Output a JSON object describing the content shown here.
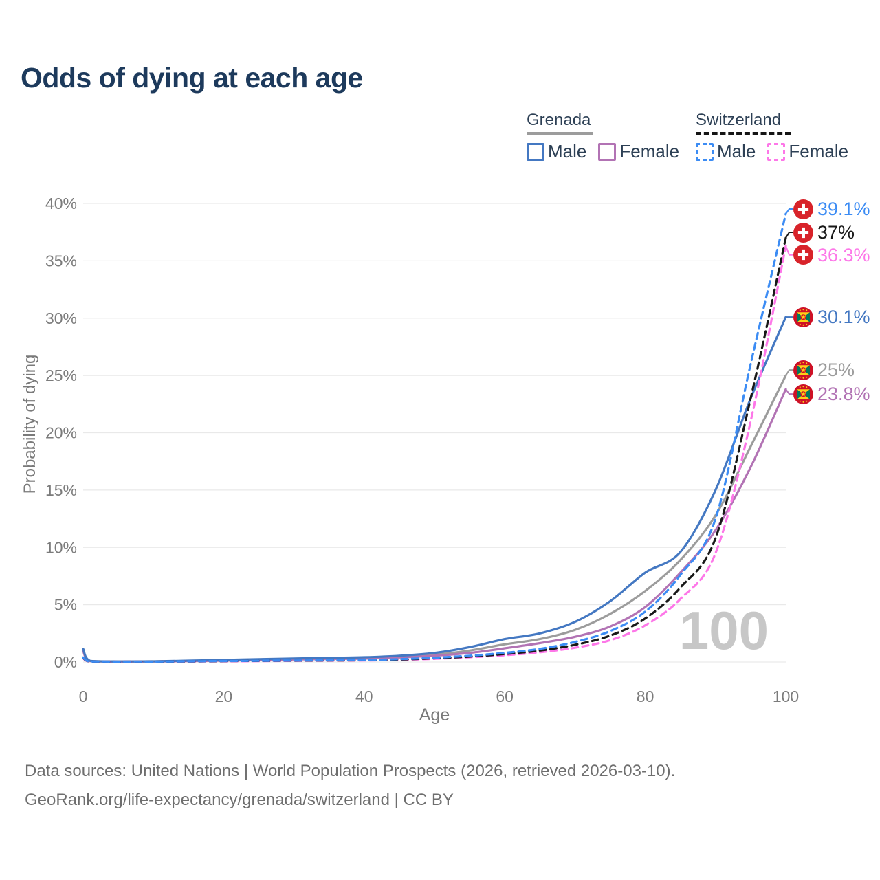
{
  "page": {
    "title": "Odds of dying at each age"
  },
  "legend": {
    "groups": [
      {
        "name": "Grenada",
        "underline_style": "solid",
        "underline_color": "#9c9c9c",
        "items": [
          {
            "label": "Male",
            "color": "#4478c2",
            "dashed": false
          },
          {
            "label": "Female",
            "color": "#b273b4",
            "dashed": false
          }
        ]
      },
      {
        "name": "Switzerland",
        "underline_style": "dashed",
        "underline_color": "#151515",
        "items": [
          {
            "label": "Male",
            "color": "#3c8cf4",
            "dashed": true
          },
          {
            "label": "Female",
            "color": "#fd77e8",
            "dashed": true
          }
        ]
      }
    ]
  },
  "chart_data": {
    "type": "line",
    "title": "Odds of dying at each age",
    "xlabel": "Age",
    "ylabel": "Probability of dying",
    "xlim": [
      0,
      100
    ],
    "ylim": [
      0,
      40
    ],
    "grid": "horizontal",
    "legend_position": "top-right",
    "hover_age_watermark": "100",
    "x_ticks": [
      {
        "v": 0,
        "label": "0"
      },
      {
        "v": 20,
        "label": "20"
      },
      {
        "v": 40,
        "label": "40"
      },
      {
        "v": 60,
        "label": "60"
      },
      {
        "v": 80,
        "label": "80"
      },
      {
        "v": 100,
        "label": "100"
      }
    ],
    "y_ticks": [
      {
        "v": 0,
        "label": "0%"
      },
      {
        "v": 5,
        "label": "5%"
      },
      {
        "v": 10,
        "label": "10%"
      },
      {
        "v": 15,
        "label": "15%"
      },
      {
        "v": 20,
        "label": "20%"
      },
      {
        "v": 25,
        "label": "25%"
      },
      {
        "v": 30,
        "label": "30%"
      },
      {
        "v": 35,
        "label": "35%"
      },
      {
        "v": 40,
        "label": "40%"
      }
    ],
    "ages": [
      0,
      1,
      5,
      10,
      15,
      20,
      25,
      30,
      35,
      40,
      45,
      50,
      55,
      60,
      65,
      70,
      75,
      80,
      85,
      90,
      95,
      100
    ],
    "series": [
      {
        "name": "Grenada Both sexes",
        "country": "Grenada",
        "sex": "both",
        "color": "#9c9c9c",
        "dashed": false,
        "values": [
          1.05,
          0.09,
          0.04,
          0.05,
          0.1,
          0.15,
          0.21,
          0.27,
          0.32,
          0.36,
          0.48,
          0.65,
          1.0,
          1.55,
          2.0,
          2.8,
          4.2,
          6.2,
          8.9,
          12.8,
          18.8,
          25.0
        ],
        "end_label": {
          "text": "25%",
          "value": 25.0,
          "flag": "grenada",
          "dy": -8
        }
      },
      {
        "name": "Grenada Female",
        "country": "Grenada",
        "sex": "female",
        "color": "#b273b4",
        "dashed": false,
        "values": [
          0.95,
          0.08,
          0.04,
          0.05,
          0.08,
          0.12,
          0.17,
          0.22,
          0.27,
          0.3,
          0.4,
          0.55,
          0.8,
          1.2,
          1.65,
          2.2,
          3.1,
          4.8,
          7.8,
          11.5,
          17.0,
          23.8
        ],
        "end_label": {
          "text": "23.8%",
          "value": 23.8,
          "flag": "grenada",
          "dy": 7
        }
      },
      {
        "name": "Grenada Male",
        "country": "Grenada",
        "sex": "male",
        "color": "#4478c2",
        "dashed": false,
        "values": [
          1.15,
          0.1,
          0.05,
          0.06,
          0.12,
          0.18,
          0.25,
          0.31,
          0.36,
          0.42,
          0.55,
          0.8,
          1.3,
          2.0,
          2.5,
          3.5,
          5.3,
          7.8,
          9.6,
          15.0,
          23.0,
          30.1
        ],
        "end_label": {
          "text": "30.1%",
          "value": 30.1,
          "flag": "grenada",
          "dy": 0
        }
      },
      {
        "name": "Switzerland Female",
        "country": "Switzerland",
        "sex": "female",
        "color": "#fd77e8",
        "dashed": true,
        "values": [
          0.33,
          0.03,
          0.02,
          0.02,
          0.04,
          0.06,
          0.08,
          0.1,
          0.12,
          0.14,
          0.19,
          0.28,
          0.42,
          0.6,
          0.85,
          1.25,
          1.9,
          3.2,
          5.5,
          9.5,
          21.0,
          36.3
        ],
        "end_label": {
          "text": "36.3%",
          "value": 36.3,
          "flag": "switzerland",
          "dy": 13
        }
      },
      {
        "name": "Switzerland Both sexes",
        "country": "Switzerland",
        "sex": "both",
        "color": "#181818",
        "dashed": true,
        "values": [
          0.37,
          0.04,
          0.02,
          0.03,
          0.05,
          0.08,
          0.1,
          0.12,
          0.14,
          0.16,
          0.22,
          0.33,
          0.48,
          0.7,
          1.0,
          1.5,
          2.3,
          3.8,
          6.5,
          10.8,
          23.0,
          37.0
        ],
        "end_label": {
          "text": "37%",
          "value": 37.0,
          "flag": "switzerland",
          "dy": -8
        }
      },
      {
        "name": "Switzerland Male",
        "country": "Switzerland",
        "sex": "male",
        "color": "#3c8cf4",
        "dashed": true,
        "values": [
          0.4,
          0.04,
          0.02,
          0.03,
          0.06,
          0.09,
          0.11,
          0.13,
          0.15,
          0.18,
          0.25,
          0.38,
          0.55,
          0.8,
          1.15,
          1.75,
          2.7,
          4.4,
          7.6,
          12.5,
          26.0,
          39.1
        ],
        "end_label": {
          "text": "39.1%",
          "value": 39.1,
          "flag": "switzerland",
          "dy": -7
        }
      }
    ]
  },
  "footer": {
    "line1": "Data sources: United Nations | World Population Prospects (2026, retrieved 2026-03-10).",
    "line2": "GeoRank.org/life-expectancy/grenada/switzerland | CC BY"
  }
}
